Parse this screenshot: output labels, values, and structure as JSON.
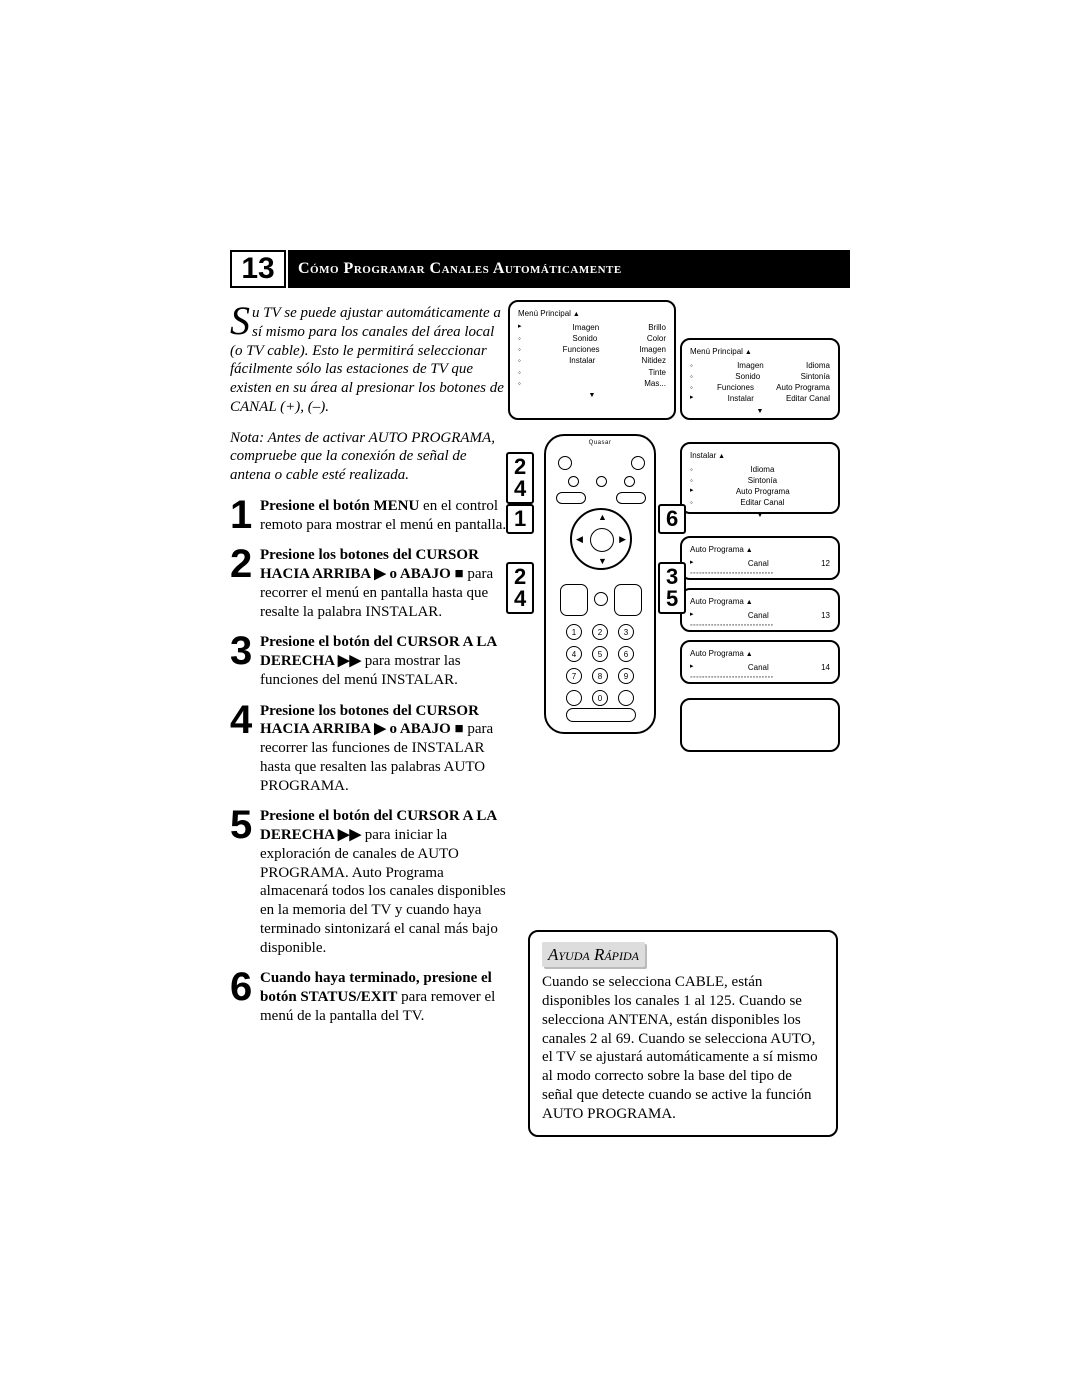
{
  "section_number": "13",
  "title": "Cómo Programar Canales Automáticamente",
  "intro_first_word_initial": "S",
  "intro_first_word_rest": "u",
  "intro": "TV se puede ajustar automáticamente a sí mismo para los canales del área local (o TV cable). Esto le permitirá seleccionar fácilmente sólo las estaciones de TV que existen en su área al presionar los botones de CANAL (+), (–).",
  "note": "Nota: Antes de activar AUTO PROGRAMA, compruebe que la conexión de señal de antena o cable esté realizada.",
  "steps": [
    {
      "n": "1",
      "bold": "Presione el botón MENU",
      "rest": " en el control remoto para mostrar el menú en pantalla."
    },
    {
      "n": "2",
      "bold": "Presione los botones del CURSOR HACIA ARRIBA ▶ o ABAJO ■",
      "rest": " para recorrer el menú en pantalla hasta que resalte la palabra INSTALAR."
    },
    {
      "n": "3",
      "bold": "Presione el botón del CURSOR A LA DERECHA ▶▶",
      "rest": " para mostrar las funciones del menú INSTALAR."
    },
    {
      "n": "4",
      "bold": "Presione los botones del CURSOR HACIA ARRIBA ▶ o ABAJO ■",
      "rest": " para recorrer las funciones de INSTALAR hasta que resalten las palabras AUTO PROGRAMA."
    },
    {
      "n": "5",
      "bold": "Presione el botón del CURSOR A LA DERECHA ▶▶",
      "rest": " para iniciar la exploración de canales de AUTO PROGRAMA. Auto Programa almacenará todos los canales disponibles en la memoria del TV y cuando haya terminado sintonizará el canal más bajo disponible."
    },
    {
      "n": "6",
      "bold": "Cuando haya terminado, presione el botón STATUS/EXIT",
      "rest": " para remover el menú de la pantalla del TV."
    }
  ],
  "screens": {
    "s1": {
      "title": "Menú Principal",
      "rows": [
        {
          "k": "Imagen",
          "v": "Brillo",
          "sel": true
        },
        {
          "k": "Sonido",
          "v": "Color"
        },
        {
          "k": "Funciones",
          "v": "Imagen"
        },
        {
          "k": "Instalar",
          "v": "Nitidez"
        },
        {
          "k": "",
          "v": "Tinte"
        },
        {
          "k": "",
          "v": "Mas..."
        }
      ]
    },
    "s2": {
      "title": "Menú Principal",
      "rows": [
        {
          "k": "Imagen",
          "v": "Idioma"
        },
        {
          "k": "Sonido",
          "v": "Sintonía"
        },
        {
          "k": "Funciones",
          "v": "Auto Programa"
        },
        {
          "k": "Instalar",
          "v": "Editar Canal",
          "sel": true
        }
      ]
    },
    "s3": {
      "title": "Instalar",
      "rows": [
        {
          "k": "Idioma",
          "v": ""
        },
        {
          "k": "Sintonía",
          "v": ""
        },
        {
          "k": "Auto Programa",
          "v": "",
          "sel": true
        },
        {
          "k": "Editar Canal",
          "v": ""
        }
      ]
    },
    "s4": {
      "title": "Auto Programa",
      "rows": [
        {
          "k": "Canal",
          "v": "12",
          "sel": true
        }
      ],
      "scan": true
    },
    "s5": {
      "title": "Auto Programa",
      "rows": [
        {
          "k": "Canal",
          "v": "13",
          "sel": true
        }
      ],
      "scan": true
    },
    "s6": {
      "title": "Auto Programa",
      "rows": [
        {
          "k": "Canal",
          "v": "14",
          "sel": true
        }
      ],
      "scan": true
    }
  },
  "remote": {
    "brand": "Quasar",
    "keys": [
      "1",
      "2",
      "3",
      "4",
      "5",
      "6",
      "7",
      "8",
      "9",
      "",
      "0",
      ""
    ]
  },
  "callouts": {
    "c1": [
      "1"
    ],
    "c2": [
      "6"
    ],
    "c3": [
      "2",
      "4"
    ],
    "c5": [
      "2",
      "4"
    ],
    "c4": [
      "3",
      "5"
    ]
  },
  "help": {
    "title": "Ayuda Rápida",
    "body": "Cuando se selecciona CABLE, están disponibles los canales 1 al 125. Cuando se selecciona ANTENA, están disponibles los canales 2 al 69. Cuando se selecciona AUTO, el TV se ajustará automáticamente a sí mismo al modo correcto sobre la base del tipo de señal que detecte cuando se active la función AUTO PROGRAMA."
  },
  "colors": {
    "bg": "#ffffff",
    "fg": "#000000",
    "help_title_bg": "#dddddd"
  }
}
